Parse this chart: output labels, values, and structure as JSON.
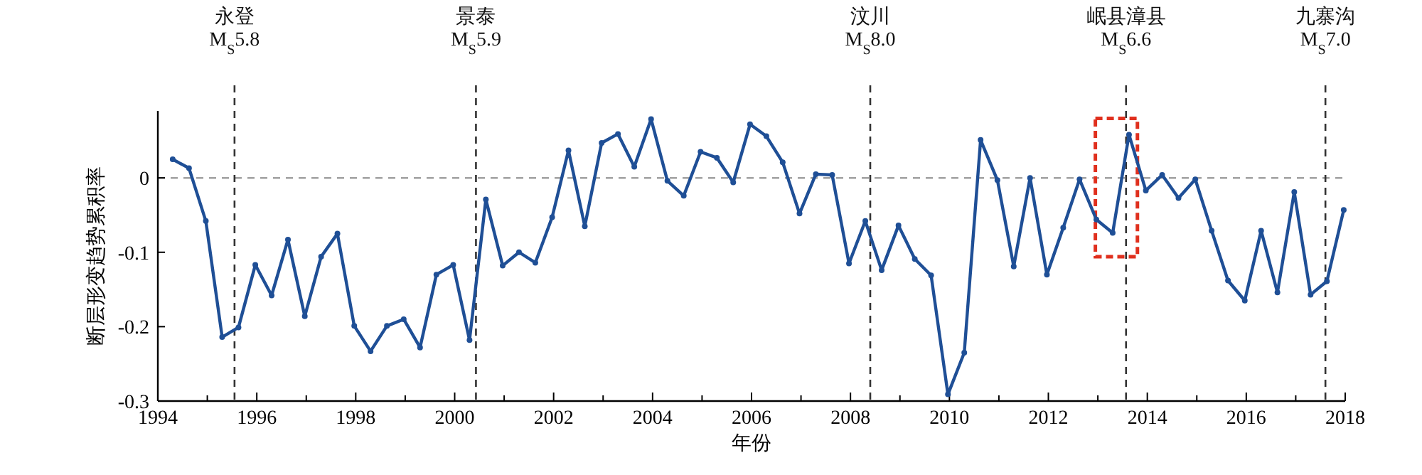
{
  "chart_data": {
    "type": "line",
    "xlabel": "年份",
    "ylabel": "断层形变趋势累积率",
    "x": [
      1994.3,
      1994.63,
      1994.97,
      1995.3,
      1995.63,
      1995.97,
      1996.3,
      1996.63,
      1996.97,
      1997.3,
      1997.63,
      1997.97,
      1998.3,
      1998.63,
      1998.97,
      1999.3,
      1999.63,
      1999.97,
      2000.3,
      2000.63,
      2000.97,
      2001.3,
      2001.63,
      2001.97,
      2002.3,
      2002.63,
      2002.97,
      2003.3,
      2003.63,
      2003.97,
      2004.3,
      2004.63,
      2004.97,
      2005.3,
      2005.63,
      2005.97,
      2006.3,
      2006.63,
      2006.97,
      2007.3,
      2007.63,
      2007.97,
      2008.3,
      2008.63,
      2008.97,
      2009.3,
      2009.63,
      2009.97,
      2010.3,
      2010.63,
      2010.97,
      2011.3,
      2011.63,
      2011.97,
      2012.3,
      2012.63,
      2012.97,
      2013.3,
      2013.63,
      2013.97,
      2014.3,
      2014.63,
      2014.97,
      2015.3,
      2015.63,
      2015.97,
      2016.3,
      2016.63,
      2016.97,
      2017.3,
      2017.63,
      2017.97
    ],
    "series": [
      {
        "color": "#1f4f96",
        "values": [
          0.025,
          0.013,
          -0.058,
          -0.214,
          -0.201,
          -0.117,
          -0.158,
          -0.083,
          -0.186,
          -0.106,
          -0.075,
          -0.199,
          -0.233,
          -0.199,
          -0.19,
          -0.228,
          -0.13,
          -0.117,
          -0.218,
          -0.029,
          -0.118,
          -0.1,
          -0.114,
          -0.053,
          0.037,
          -0.065,
          0.047,
          0.059,
          0.015,
          0.079,
          -0.004,
          -0.024,
          0.035,
          0.027,
          -0.006,
          0.072,
          0.056,
          0.021,
          -0.048,
          0.005,
          0.004,
          -0.115,
          -0.058,
          -0.124,
          -0.064,
          -0.109,
          -0.131,
          -0.291,
          -0.235,
          0.051,
          -0.003,
          -0.119,
          0,
          -0.13,
          -0.067,
          -0.002,
          -0.056,
          -0.074,
          0.058,
          -0.017,
          0.004,
          -0.027,
          -0.002,
          -0.071,
          -0.138,
          -0.165,
          -0.071,
          -0.154,
          -0.019,
          -0.157,
          -0.139,
          -0.043
        ]
      }
    ],
    "xlim": [
      1994,
      2018
    ],
    "xticks": [
      1994,
      {
        "value": 1995,
        "label": null
      },
      1996,
      {
        "value": 1997,
        "label": null
      },
      1998,
      {
        "value": 1999,
        "label": null
      },
      2000,
      {
        "value": 2001,
        "label": null
      },
      2002,
      {
        "value": 2003,
        "label": null
      },
      2004,
      {
        "value": 2005,
        "label": null
      },
      2006,
      {
        "value": 2007,
        "label": null
      },
      2008,
      {
        "value": 2009,
        "label": null
      },
      2010,
      {
        "value": 2011,
        "label": null
      },
      2012,
      {
        "value": 2013,
        "label": null
      },
      2014,
      {
        "value": 2015,
        "label": null
      },
      2016,
      {
        "value": 2017,
        "label": null
      },
      2018
    ],
    "ylim": [
      -0.3,
      0.09
    ],
    "yticks": [
      0,
      -0.1,
      -0.2,
      -0.3
    ],
    "ref_lines": [
      {
        "axis": "y",
        "value": 0,
        "label": null,
        "color": "#888888",
        "line_style": "dashed"
      },
      {
        "axis": "x",
        "value": 1995.55,
        "label": "永登\nM$_{S}$5.8",
        "color": "#333333",
        "line_style": "dashed"
      },
      {
        "axis": "x",
        "value": 2000.43,
        "label": "景泰\nM$_{S}$5.9",
        "color": "#333333",
        "line_style": "dashed"
      },
      {
        "axis": "x",
        "value": 2008.4,
        "label": "汶川\nM$_{S}$8.0",
        "color": "#333333",
        "line_style": "dashed"
      },
      {
        "axis": "x",
        "value": 2013.57,
        "label": "岷县漳县\nM$_{S}$6.6",
        "color": "#333333",
        "line_style": "dashed"
      },
      {
        "axis": "x",
        "value": 2017.6,
        "label": "九寨沟\nM$_{S}$7.0",
        "color": "#333333",
        "line_style": "dashed"
      }
    ],
    "marker": "circle",
    "line_style": "solid",
    "grid": false
  }
}
